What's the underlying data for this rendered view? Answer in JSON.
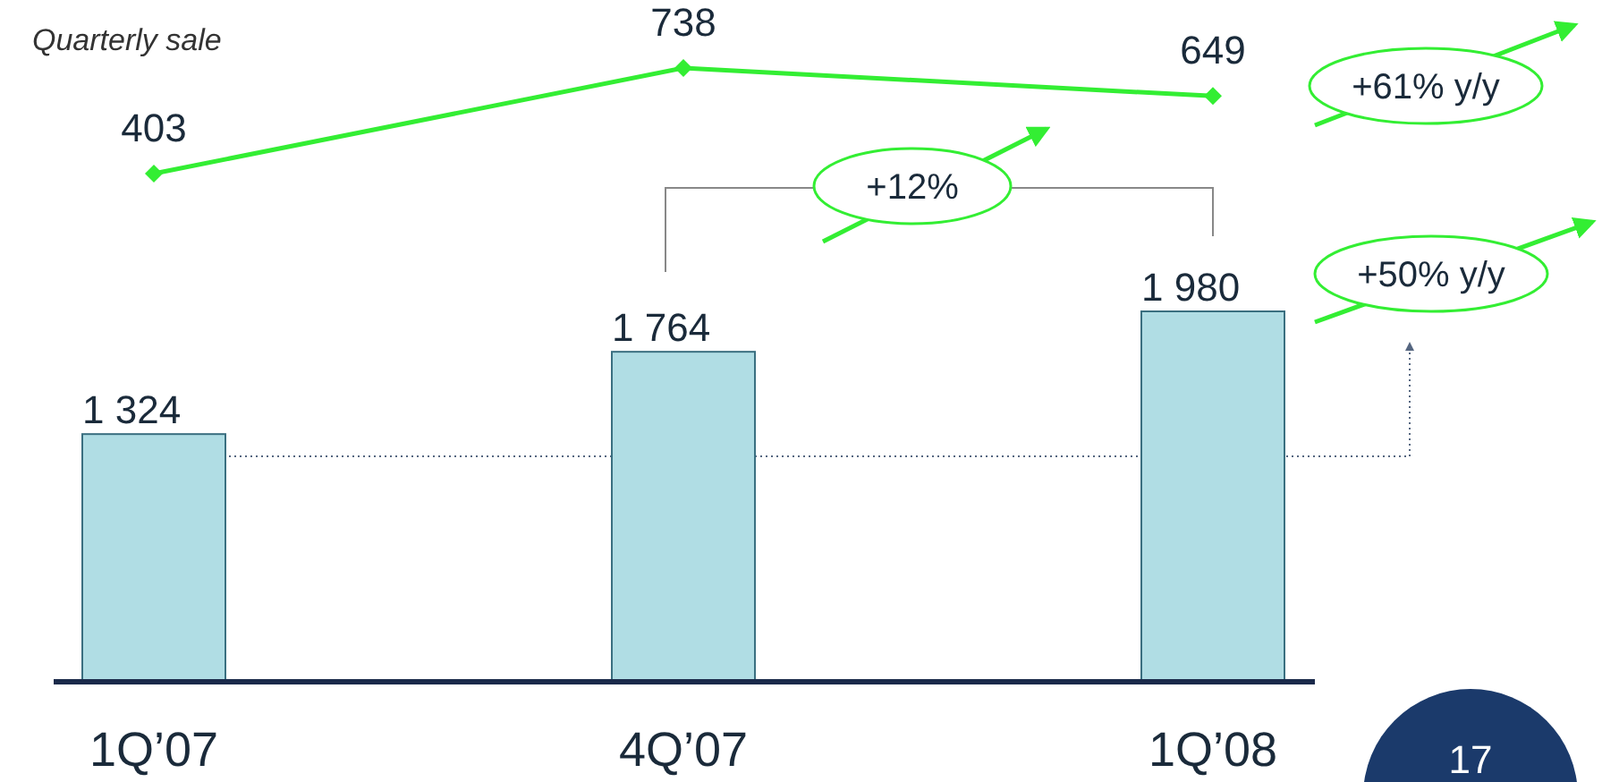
{
  "chart_data": [
    {
      "type": "line",
      "title": "Quarterly sale",
      "categories": [
        null,
        null,
        null
      ],
      "series": [
        {
          "color": "#33ee33",
          "marker": "diamond",
          "values": [
            403,
            738,
            649
          ]
        }
      ],
      "data_labels": true
    },
    {
      "type": "bar",
      "categories": [
        "1Q’07",
        "4Q’07",
        "1Q’08"
      ],
      "series": [
        {
          "color": "#b0dde4",
          "values": [
            1324,
            1764,
            1980
          ]
        }
      ],
      "data_labels": true,
      "annotations": [
        "+12%",
        "+61% y/y",
        "+50% y/y",
        "17"
      ]
    }
  ]
}
